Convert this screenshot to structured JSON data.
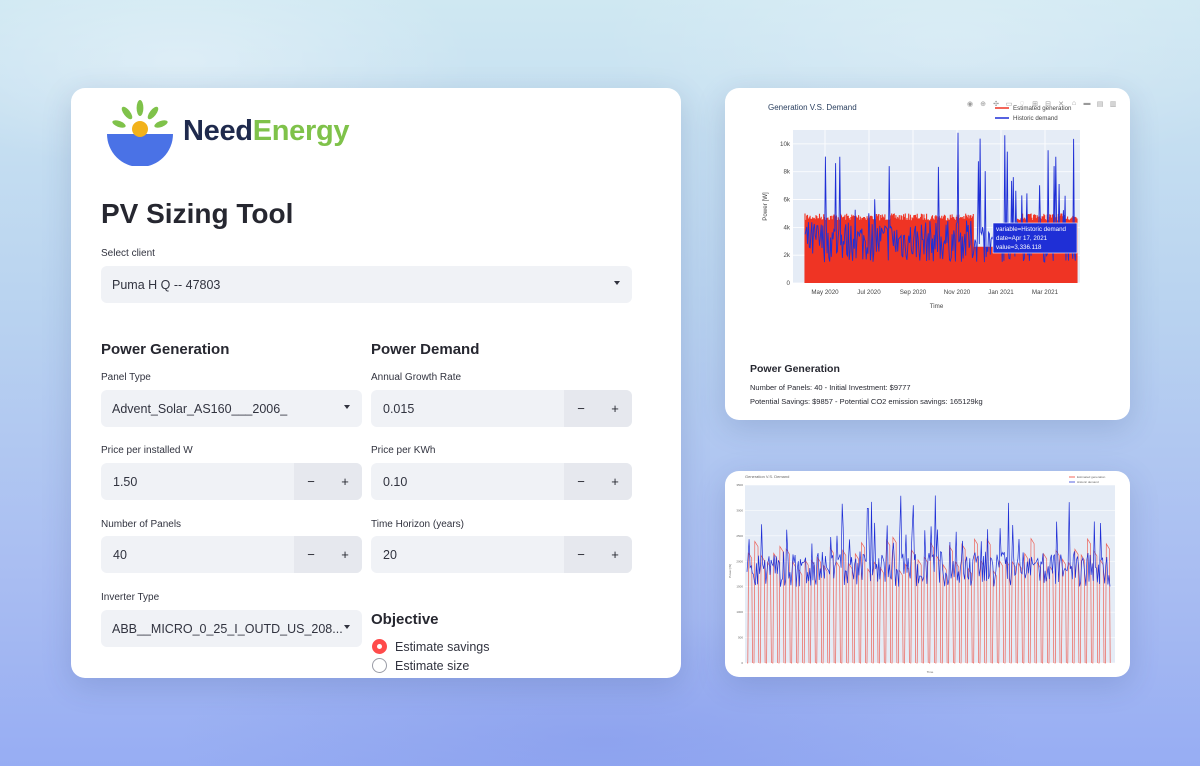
{
  "brand": {
    "name_part1": "Need",
    "name_part2": "Energy"
  },
  "page_title": "PV Sizing Tool",
  "select_client": {
    "label": "Select client",
    "value": "Puma H Q -- 47803"
  },
  "power_generation": {
    "heading": "Power Generation",
    "panel_type": {
      "label": "Panel Type",
      "value": "Advent_Solar_AS160___2006_"
    },
    "price_per_w": {
      "label": "Price per installed W",
      "value": "1.50"
    },
    "num_panels": {
      "label": "Number of Panels",
      "value": "40"
    },
    "inverter_type": {
      "label": "Inverter Type",
      "value": "ABB__MICRO_0_25_I_OUTD_US_208..."
    }
  },
  "power_demand": {
    "heading": "Power Demand",
    "growth_rate": {
      "label": "Annual Growth Rate",
      "value": "0.015"
    },
    "price_per_kwh": {
      "label": "Price per KWh",
      "value": "0.10"
    },
    "time_horizon": {
      "label": "Time Horizon (years)",
      "value": "20"
    }
  },
  "stepper": {
    "minus": "−",
    "plus": "+"
  },
  "objective": {
    "heading": "Objective",
    "options": [
      {
        "label": "Estimate savings",
        "selected": true
      },
      {
        "label": "Estimate size",
        "selected": false
      }
    ]
  },
  "results": {
    "heading": "Power Generation",
    "line1": "Number of Panels: 40 - Initial Investment: $9777",
    "line2": "Potential Savings: $9857 - Potential CO2 emission savings: 165129kg"
  },
  "colors": {
    "demand": "#1f2fd6",
    "generation": "#ef3424",
    "accent": "#ff4b4b"
  },
  "chart_data": [
    {
      "type": "line",
      "title": "Generation V.S. Demand",
      "xlabel": "Time",
      "ylabel": "Power [W]",
      "x_ticks": [
        "May 2020",
        "Jul 2020",
        "Sep 2020",
        "Nov 2020",
        "Jan 2021",
        "Mar 2021"
      ],
      "y_ticks": [
        "0",
        "2k",
        "4k",
        "6k",
        "8k",
        "10k"
      ],
      "ylim": [
        0,
        11000
      ],
      "legend_position": "top-right",
      "series": [
        {
          "name": "Estimated generation",
          "color": "#ef3424",
          "typical_min": 0,
          "typical_max": 5000
        },
        {
          "name": "Historic demand",
          "color": "#1f2fd6",
          "typical_min": 1500,
          "typical_max": 4500,
          "peak": 10900
        }
      ],
      "hover": {
        "line1": "variable=Historic demand",
        "line2": "date=Apr 17, 2021",
        "line3": "value=3,336.118"
      }
    },
    {
      "type": "line",
      "title": "Generation V.S. Demand",
      "xlabel": "Time",
      "ylabel": "Power [W]",
      "y_ticks": [
        "0",
        "500",
        "1000",
        "1500",
        "2000",
        "2500",
        "3000",
        "3500"
      ],
      "legend_position": "top-right",
      "series": [
        {
          "name": "Estimated generation",
          "color": "#ef3424"
        },
        {
          "name": "Historic demand",
          "color": "#1f2fd6"
        }
      ]
    }
  ]
}
